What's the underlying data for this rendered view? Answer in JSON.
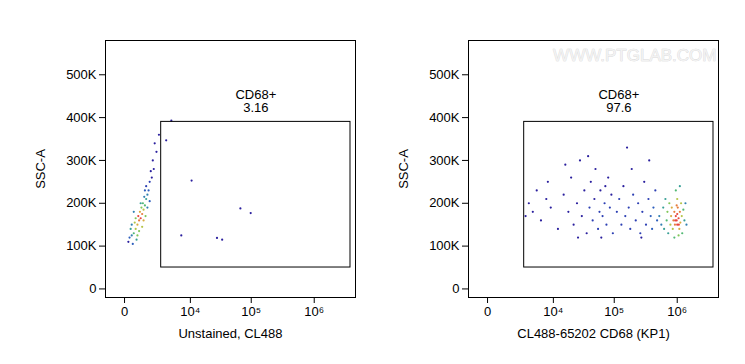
{
  "chart_data": [
    {
      "type": "scatter",
      "x_label": "Unstained, CL488",
      "y_label": "SSC-A",
      "log": "x",
      "xlim": [
        -1000,
        4500000
      ],
      "ylim": [
        -20000,
        580000
      ],
      "xticks": [
        0,
        {
          "value": 10000,
          "label": "10⁴"
        },
        {
          "value": 100000,
          "label": "10⁵"
        },
        {
          "value": 1000000,
          "label": "10⁶"
        }
      ],
      "yticks": [
        0,
        {
          "value": 100000,
          "label": "100K"
        },
        {
          "value": 200000,
          "label": "200K"
        },
        {
          "value": 300000,
          "label": "300K"
        },
        {
          "value": 400000,
          "label": "400K"
        },
        {
          "value": 500000,
          "label": "500K"
        }
      ],
      "gate": {
        "name": "CD68+",
        "value": 3.16,
        "x": [
          2800,
          3750000
        ],
        "y": [
          50000,
          390000
        ]
      },
      "points": [
        [
          150,
          110000,
          0
        ],
        [
          200,
          120000,
          0.2
        ],
        [
          300,
          125000,
          0.3
        ],
        [
          400,
          130000,
          0.5
        ],
        [
          250,
          140000,
          0.4
        ],
        [
          500,
          140000,
          0.7
        ],
        [
          600,
          150000,
          0.8
        ],
        [
          450,
          155000,
          0.7
        ],
        [
          700,
          160000,
          0.9
        ],
        [
          800,
          165000,
          1
        ],
        [
          650,
          170000,
          1
        ],
        [
          900,
          175000,
          0.9
        ],
        [
          750,
          180000,
          0.8
        ],
        [
          1000,
          185000,
          0.7
        ],
        [
          850,
          190000,
          0.6
        ],
        [
          1100,
          195000,
          0.5
        ],
        [
          950,
          200000,
          0.5
        ],
        [
          1200,
          210000,
          0.4
        ],
        [
          1050,
          215000,
          0.3
        ],
        [
          1300,
          220000,
          0.3
        ],
        [
          1400,
          230000,
          0.2
        ],
        [
          1200,
          240000,
          0.1
        ],
        [
          1500,
          250000,
          0.1
        ],
        [
          1700,
          260000,
          0
        ],
        [
          1600,
          275000,
          0
        ],
        [
          1800,
          300000,
          0
        ],
        [
          2200,
          320000,
          0
        ],
        [
          2000,
          340000,
          0
        ],
        [
          350,
          105000,
          0.2
        ],
        [
          550,
          115000,
          0.4
        ],
        [
          700,
          135000,
          0.6
        ],
        [
          900,
          145000,
          0.7
        ],
        [
          600,
          125000,
          0.6
        ],
        [
          1000,
          160000,
          0.8
        ],
        [
          500,
          165000,
          0.6
        ],
        [
          1150,
          170000,
          0.6
        ],
        [
          800,
          200000,
          0.4
        ],
        [
          1300,
          190000,
          0.3
        ],
        [
          400,
          180000,
          0.3
        ],
        [
          1500,
          205000,
          0.2
        ],
        [
          1100,
          230000,
          0.2
        ],
        [
          300,
          150000,
          0.3
        ],
        [
          1900,
          280000,
          0
        ],
        [
          2500,
          360000,
          0
        ],
        [
          3560,
          347000,
          0
        ],
        [
          4500,
          393000,
          0
        ],
        [
          6900,
          125000,
          0
        ],
        [
          10500,
          253000,
          0
        ],
        [
          28000,
          119000,
          0
        ],
        [
          34000,
          115000,
          0
        ],
        [
          67000,
          188000,
          0
        ],
        [
          98000,
          177000,
          0
        ]
      ]
    },
    {
      "type": "scatter",
      "x_label": "CL488-65202 CD68 (KP1)",
      "y_label": "SSC-A",
      "log": "x",
      "watermark": "WWW.PTGLAB.COM",
      "xlim": [
        -1000,
        4500000
      ],
      "ylim": [
        -20000,
        580000
      ],
      "xticks": [
        0,
        {
          "value": 10000,
          "label": "10⁴"
        },
        {
          "value": 100000,
          "label": "10⁵"
        },
        {
          "value": 1000000,
          "label": "10⁶"
        }
      ],
      "yticks": [
        0,
        {
          "value": 100000,
          "label": "100K"
        },
        {
          "value": 200000,
          "label": "200K"
        },
        {
          "value": 300000,
          "label": "300K"
        },
        {
          "value": 400000,
          "label": "400K"
        },
        {
          "value": 500000,
          "label": "500K"
        }
      ],
      "gate": {
        "name": "CD68+",
        "value": 97.6,
        "x": [
          2800,
          3750000
        ],
        "y": [
          50000,
          390000
        ]
      },
      "points": [
        [
          3500,
          200000,
          0
        ],
        [
          4200,
          180000,
          0
        ],
        [
          5000,
          230000,
          0
        ],
        [
          6000,
          160000,
          0
        ],
        [
          7500,
          210000,
          0
        ],
        [
          8000,
          250000,
          0
        ],
        [
          9000,
          190000,
          0
        ],
        [
          3000,
          170000,
          0
        ],
        [
          12000,
          140000,
          0
        ],
        [
          15000,
          220000,
          0
        ],
        [
          18000,
          180000,
          0
        ],
        [
          20000,
          260000,
          0
        ],
        [
          22000,
          150000,
          0
        ],
        [
          25000,
          200000,
          0
        ],
        [
          28000,
          300000,
          0
        ],
        [
          30000,
          170000,
          0
        ],
        [
          33000,
          230000,
          0
        ],
        [
          36000,
          130000,
          0
        ],
        [
          40000,
          190000,
          0.1
        ],
        [
          42000,
          250000,
          0
        ],
        [
          45000,
          160000,
          0.1
        ],
        [
          48000,
          210000,
          0
        ],
        [
          50000,
          280000,
          0
        ],
        [
          55000,
          140000,
          0.1
        ],
        [
          58000,
          180000,
          0.1
        ],
        [
          60000,
          230000,
          0
        ],
        [
          65000,
          170000,
          0.1
        ],
        [
          70000,
          200000,
          0.1
        ],
        [
          75000,
          150000,
          0.1
        ],
        [
          80000,
          260000,
          0
        ],
        [
          85000,
          190000,
          0.1
        ],
        [
          90000,
          220000,
          0
        ],
        [
          95000,
          130000,
          0.1
        ],
        [
          16000,
          290000,
          0
        ],
        [
          26000,
          120000,
          0
        ],
        [
          38000,
          310000,
          0
        ],
        [
          62000,
          120000,
          0
        ],
        [
          72000,
          240000,
          0
        ],
        [
          110000,
          180000,
          0.1
        ],
        [
          120000,
          210000,
          0.1
        ],
        [
          130000,
          150000,
          0.1
        ],
        [
          140000,
          240000,
          0
        ],
        [
          150000,
          170000,
          0.1
        ],
        [
          160000,
          330000,
          0
        ],
        [
          170000,
          190000,
          0.1
        ],
        [
          180000,
          140000,
          0.1
        ],
        [
          200000,
          220000,
          0.1
        ],
        [
          220000,
          160000,
          0.1
        ],
        [
          240000,
          200000,
          0.1
        ],
        [
          260000,
          130000,
          0.1
        ],
        [
          280000,
          180000,
          0.1
        ],
        [
          300000,
          250000,
          0
        ],
        [
          320000,
          150000,
          0.1
        ],
        [
          350000,
          210000,
          0.1
        ],
        [
          380000,
          170000,
          0.2
        ],
        [
          400000,
          140000,
          0.2
        ],
        [
          420000,
          190000,
          0.2
        ],
        [
          450000,
          230000,
          0.1
        ],
        [
          480000,
          160000,
          0.2
        ],
        [
          190000,
          280000,
          0
        ],
        [
          270000,
          120000,
          0
        ],
        [
          360000,
          300000,
          0
        ],
        [
          520000,
          170000,
          0.3
        ],
        [
          560000,
          150000,
          0.3
        ],
        [
          600000,
          190000,
          0.4
        ],
        [
          620000,
          140000,
          0.4
        ],
        [
          650000,
          210000,
          0.4
        ],
        [
          680000,
          160000,
          0.5
        ],
        [
          700000,
          180000,
          0.6
        ],
        [
          720000,
          130000,
          0.4
        ],
        [
          750000,
          200000,
          0.6
        ],
        [
          780000,
          150000,
          0.7
        ],
        [
          800000,
          170000,
          0.8
        ],
        [
          820000,
          190000,
          0.8
        ],
        [
          850000,
          140000,
          0.7
        ],
        [
          870000,
          160000,
          0.9
        ],
        [
          900000,
          180000,
          0.9
        ],
        [
          920000,
          150000,
          0.9
        ],
        [
          950000,
          170000,
          1
        ],
        [
          980000,
          160000,
          1
        ],
        [
          1000000,
          150000,
          1
        ],
        [
          1000000,
          175000,
          1
        ],
        [
          1020000,
          190000,
          0.9
        ],
        [
          1050000,
          165000,
          1
        ],
        [
          1080000,
          140000,
          0.8
        ],
        [
          1100000,
          180000,
          0.9
        ],
        [
          1120000,
          155000,
          0.8
        ],
        [
          1150000,
          200000,
          0.7
        ],
        [
          1180000,
          170000,
          0.7
        ],
        [
          1200000,
          130000,
          0.5
        ],
        [
          1250000,
          185000,
          0.5
        ],
        [
          1300000,
          160000,
          0.4
        ],
        [
          1000000,
          210000,
          0.7
        ],
        [
          950000,
          230000,
          0.5
        ],
        [
          1100000,
          240000,
          0.4
        ],
        [
          900000,
          120000,
          0.5
        ],
        [
          1050000,
          125000,
          0.6
        ],
        [
          1350000,
          200000,
          0.3
        ],
        [
          1400000,
          150000,
          0.3
        ],
        [
          980000,
          195000,
          0.9
        ],
        [
          1060000,
          150000,
          1
        ],
        [
          930000,
          160000,
          1
        ]
      ]
    }
  ]
}
